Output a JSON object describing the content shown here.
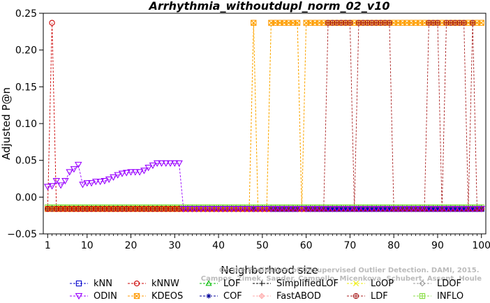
{
  "chart_data": {
    "type": "line",
    "title": "Arrhythmia_withoutdupl_norm_02_v10",
    "xlabel": "Neighborhood size",
    "ylabel": "Adjusted P@n",
    "xlim": [
      0,
      101
    ],
    "ylim": [
      -0.05,
      0.25
    ],
    "x_ticks": [
      1,
      10,
      20,
      30,
      40,
      50,
      60,
      70,
      80,
      90,
      100
    ],
    "y_ticks": [
      -0.05,
      0.0,
      0.05,
      0.1,
      0.15,
      0.2,
      0.25
    ],
    "y_tick_labels": [
      "−0.05",
      "0.00",
      "0.05",
      "0.10",
      "0.15",
      "0.20",
      "0.25"
    ],
    "baseline": -0.016,
    "credit": "Campos, Zimek, Sander, Campello, Micenkova, Schubert, Assent, Houle: On the Evaluation of Unsupervised Outlier Detection. DAMI, 2015.",
    "legend_entries": [
      {
        "name": "kNN",
        "color": "#0000cc",
        "marker": "square"
      },
      {
        "name": "kNNW",
        "color": "#cc0000",
        "marker": "circle"
      },
      {
        "name": "LOF",
        "color": "#00bb00",
        "marker": "triangle"
      },
      {
        "name": "SimplifiedLOF",
        "color": "#000000",
        "marker": "plus"
      },
      {
        "name": "LoOP",
        "color": "#eeee00",
        "marker": "x"
      },
      {
        "name": "LDOF",
        "color": "#999999",
        "marker": "diamond"
      },
      {
        "name": "ODIN",
        "color": "#9900ff",
        "marker": "tri-down"
      },
      {
        "name": "KDEOS",
        "color": "#ff9900",
        "marker": "square-x"
      },
      {
        "name": "COF",
        "color": "#000099",
        "marker": "star"
      },
      {
        "name": "FastABOD",
        "color": "#ffaaaa",
        "marker": "diamond-plus"
      },
      {
        "name": "LDF",
        "color": "#aa2222",
        "marker": "circle-plus"
      },
      {
        "name": "INFLO",
        "color": "#88dd44",
        "marker": "square-plus"
      }
    ],
    "series": [
      {
        "name": "kNN",
        "x_range": [
          1,
          100
        ],
        "constant": -0.016
      },
      {
        "name": "LOF",
        "x_range": [
          1,
          100
        ],
        "constant": -0.014
      },
      {
        "name": "SimplifiedLOF",
        "x_range": [
          1,
          100
        ],
        "constant": -0.016
      },
      {
        "name": "LDOF",
        "x_range": [
          1,
          100
        ],
        "constant": -0.016
      },
      {
        "name": "COF",
        "x_range": [
          1,
          100
        ],
        "constant": -0.016
      },
      {
        "name": "FastABOD",
        "x_range": [
          1,
          100
        ],
        "constant": -0.016
      },
      {
        "name": "INFLO",
        "x_range": [
          1,
          100
        ],
        "constant": -0.014
      },
      {
        "name": "kNNW",
        "points": [
          [
            1,
            -0.016
          ],
          [
            2,
            0.237
          ],
          [
            3,
            -0.016
          ]
        ],
        "x_range": [
          3,
          100
        ],
        "rest": -0.016
      },
      {
        "name": "ODIN",
        "points": [
          [
            1,
            0.014
          ],
          [
            2,
            0.015
          ],
          [
            3,
            0.022
          ],
          [
            4,
            0.016
          ],
          [
            5,
            0.022
          ],
          [
            6,
            0.034
          ],
          [
            7,
            0.038
          ],
          [
            8,
            0.044
          ],
          [
            9,
            0.017
          ],
          [
            10,
            0.019
          ],
          [
            11,
            0.019
          ],
          [
            12,
            0.021
          ],
          [
            13,
            0.021
          ],
          [
            14,
            0.022
          ],
          [
            15,
            0.024
          ],
          [
            16,
            0.027
          ],
          [
            17,
            0.03
          ],
          [
            18,
            0.032
          ],
          [
            19,
            0.033
          ],
          [
            20,
            0.034
          ],
          [
            21,
            0.034
          ],
          [
            22,
            0.034
          ],
          [
            23,
            0.036
          ],
          [
            24,
            0.04
          ],
          [
            25,
            0.043
          ],
          [
            26,
            0.046
          ],
          [
            27,
            0.046
          ],
          [
            28,
            0.046
          ],
          [
            29,
            0.046
          ],
          [
            30,
            0.046
          ],
          [
            31,
            0.046
          ],
          [
            32,
            -0.016
          ]
        ],
        "x_range": [
          32,
          100
        ],
        "rest": -0.016
      },
      {
        "name": "LoOP",
        "spikes": [
          48,
          52,
          53,
          54,
          55,
          56,
          57,
          58,
          60,
          61,
          62,
          63,
          64,
          65,
          66,
          67,
          68,
          69,
          70,
          71,
          72,
          73,
          74,
          75,
          76,
          77,
          78,
          79,
          80,
          81,
          82,
          83,
          84,
          85,
          86,
          87,
          88,
          89,
          90,
          91,
          92,
          93,
          94,
          95,
          96,
          97,
          98,
          99,
          100
        ],
        "peak": 0.237,
        "rest": -0.016
      },
      {
        "name": "KDEOS",
        "spikes": [
          48,
          52,
          53,
          54,
          55,
          56,
          57,
          58,
          60,
          61,
          62,
          63,
          64,
          65,
          66,
          67,
          68,
          69,
          70,
          71,
          72,
          73,
          74,
          75,
          76,
          77,
          78,
          79,
          80,
          81,
          82,
          83,
          84,
          85,
          86,
          87,
          88,
          89,
          90,
          91,
          92,
          93,
          94,
          95,
          96,
          97,
          98,
          99,
          100
        ],
        "peak": 0.237,
        "rest": -0.016
      },
      {
        "name": "LDF",
        "spikes": [
          65,
          66,
          67,
          68,
          69,
          70,
          72,
          73,
          74,
          75,
          76,
          77,
          78,
          79,
          88,
          89,
          90,
          92,
          93,
          94,
          95,
          96,
          98
        ],
        "peak": 0.237,
        "rest": -0.016
      }
    ]
  }
}
